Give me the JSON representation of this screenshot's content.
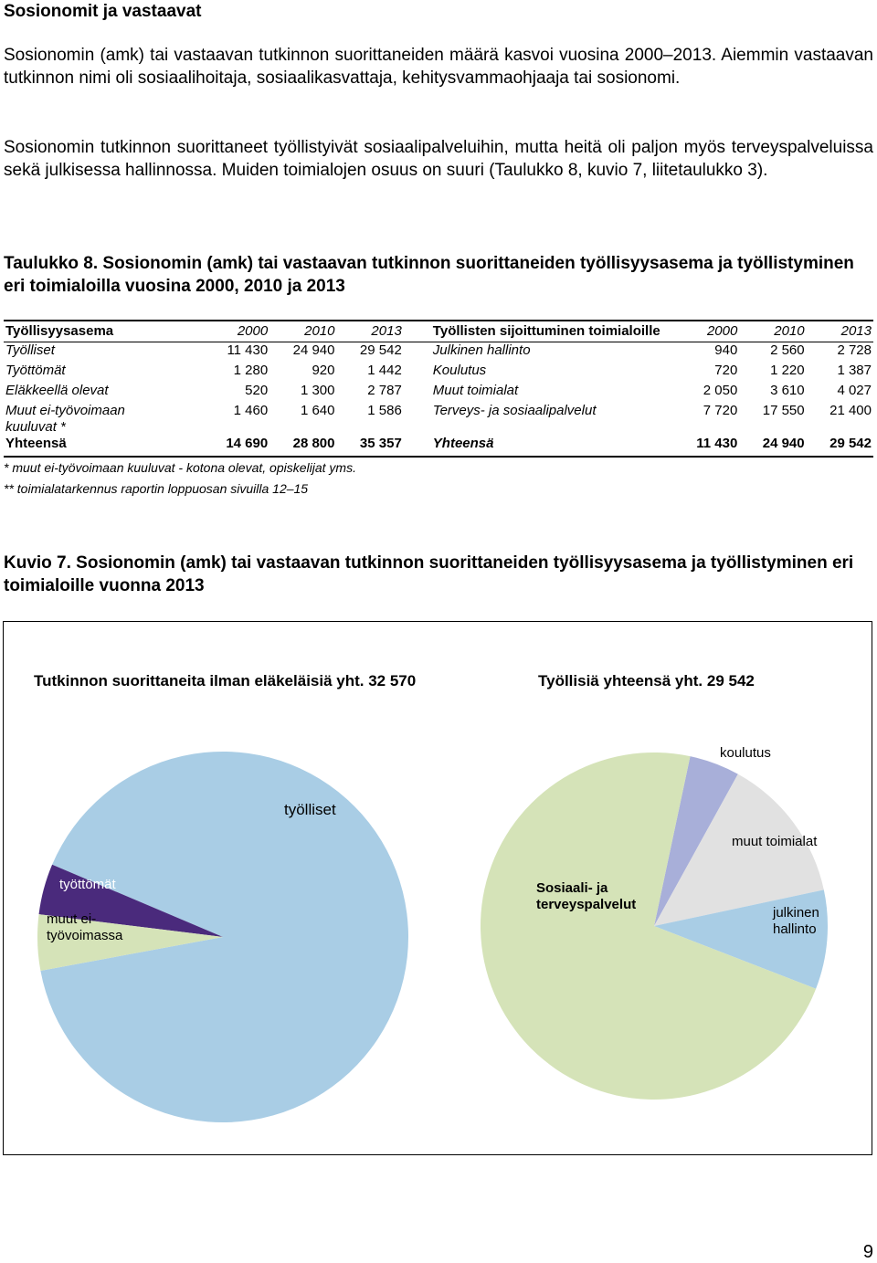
{
  "heading": "Sosionomit ja vastaavat",
  "paragraphs": [
    "Sosionomin (amk) tai vastaavan tutkinnon suorittaneiden määrä kasvoi vuosina 2000–2013. Aiemmin vastaavan tutkinnon nimi oli sosiaalihoitaja, sosiaalikasvattaja, kehitysvammaohjaaja tai sosionomi.",
    "Sosionomin tutkinnon suorittaneet työllistyivät sosiaalipalveluihin, mutta heitä oli paljon myös terveyspalveluissa sekä julkisessa hallinnossa. Muiden toimialojen osuus on suuri (Taulukko 8, kuvio 7, liitetaulukko 3)."
  ],
  "table_caption": "Taulukko 8. Sosionomin (amk) tai vastaavan tutkinnon suorittaneiden työllisyysasema ja työllistyminen eri toimialoilla vuosina 2000, 2010 ja 2013",
  "table": {
    "header": [
      "Työllisyysasema",
      "2000",
      "2010",
      "2013",
      "Työllisten sijoittuminen toimialoille",
      "2000",
      "2010",
      "2013"
    ],
    "rows": [
      [
        "Työlliset",
        "11 430",
        "24 940",
        "29 542",
        "Julkinen hallinto",
        "940",
        "2 560",
        "2 728"
      ],
      [
        "Työttömät",
        "1 280",
        "920",
        "1 442",
        "Koulutus",
        "720",
        "1 220",
        "1 387"
      ],
      [
        "Eläkkeellä olevat",
        "520",
        "1 300",
        "2 787",
        "Muut toimialat",
        "2 050",
        "3 610",
        "4 027"
      ],
      [
        "Muut ei-työvoimaan kuuluvat *",
        "1 460",
        "1 640",
        "1 586",
        "Terveys- ja sosiaalipalvelut",
        "7 720",
        "17 550",
        "21 400"
      ],
      [
        "Yhteensä",
        "14 690",
        "28 800",
        "35 357",
        "Yhteensä",
        "11 430",
        "24 940",
        "29 542"
      ]
    ],
    "notes": [
      "* muut ei-työvoimaan kuuluvat - kotona olevat, opiskelijat yms.",
      "** toimialatarkennus raportin loppuosan sivuilla 12–15"
    ]
  },
  "figure_caption": "Kuvio 7. Sosionomin (amk) tai vastaavan tutkinnon suorittaneiden työllisyysasema ja työllistyminen eri toimialoille vuonna 2013",
  "chart_data": [
    {
      "type": "pie",
      "title": "Tutkinnon suorittaneita ilman eläkeläisiä yht. 32 570",
      "labels": [
        "työlliset",
        "työttömät",
        "muut ei-työvoimassa"
      ],
      "values": [
        29542,
        1442,
        1586
      ],
      "colors": [
        "#a9cde5",
        "#4a2a7c",
        "#d5e3b8"
      ]
    },
    {
      "type": "pie",
      "title": "Työllisiä yhteensä yht. 29 542",
      "labels": [
        "koulutus",
        "muut toimialat",
        "julkinen hallinto",
        "Sosiaali- ja terveyspalvelut"
      ],
      "values": [
        1387,
        4027,
        2728,
        21400
      ],
      "colors": [
        "#a8afd9",
        "#e1e1e1",
        "#a9cde5",
        "#d5e3b8"
      ]
    }
  ],
  "page_number": "9"
}
